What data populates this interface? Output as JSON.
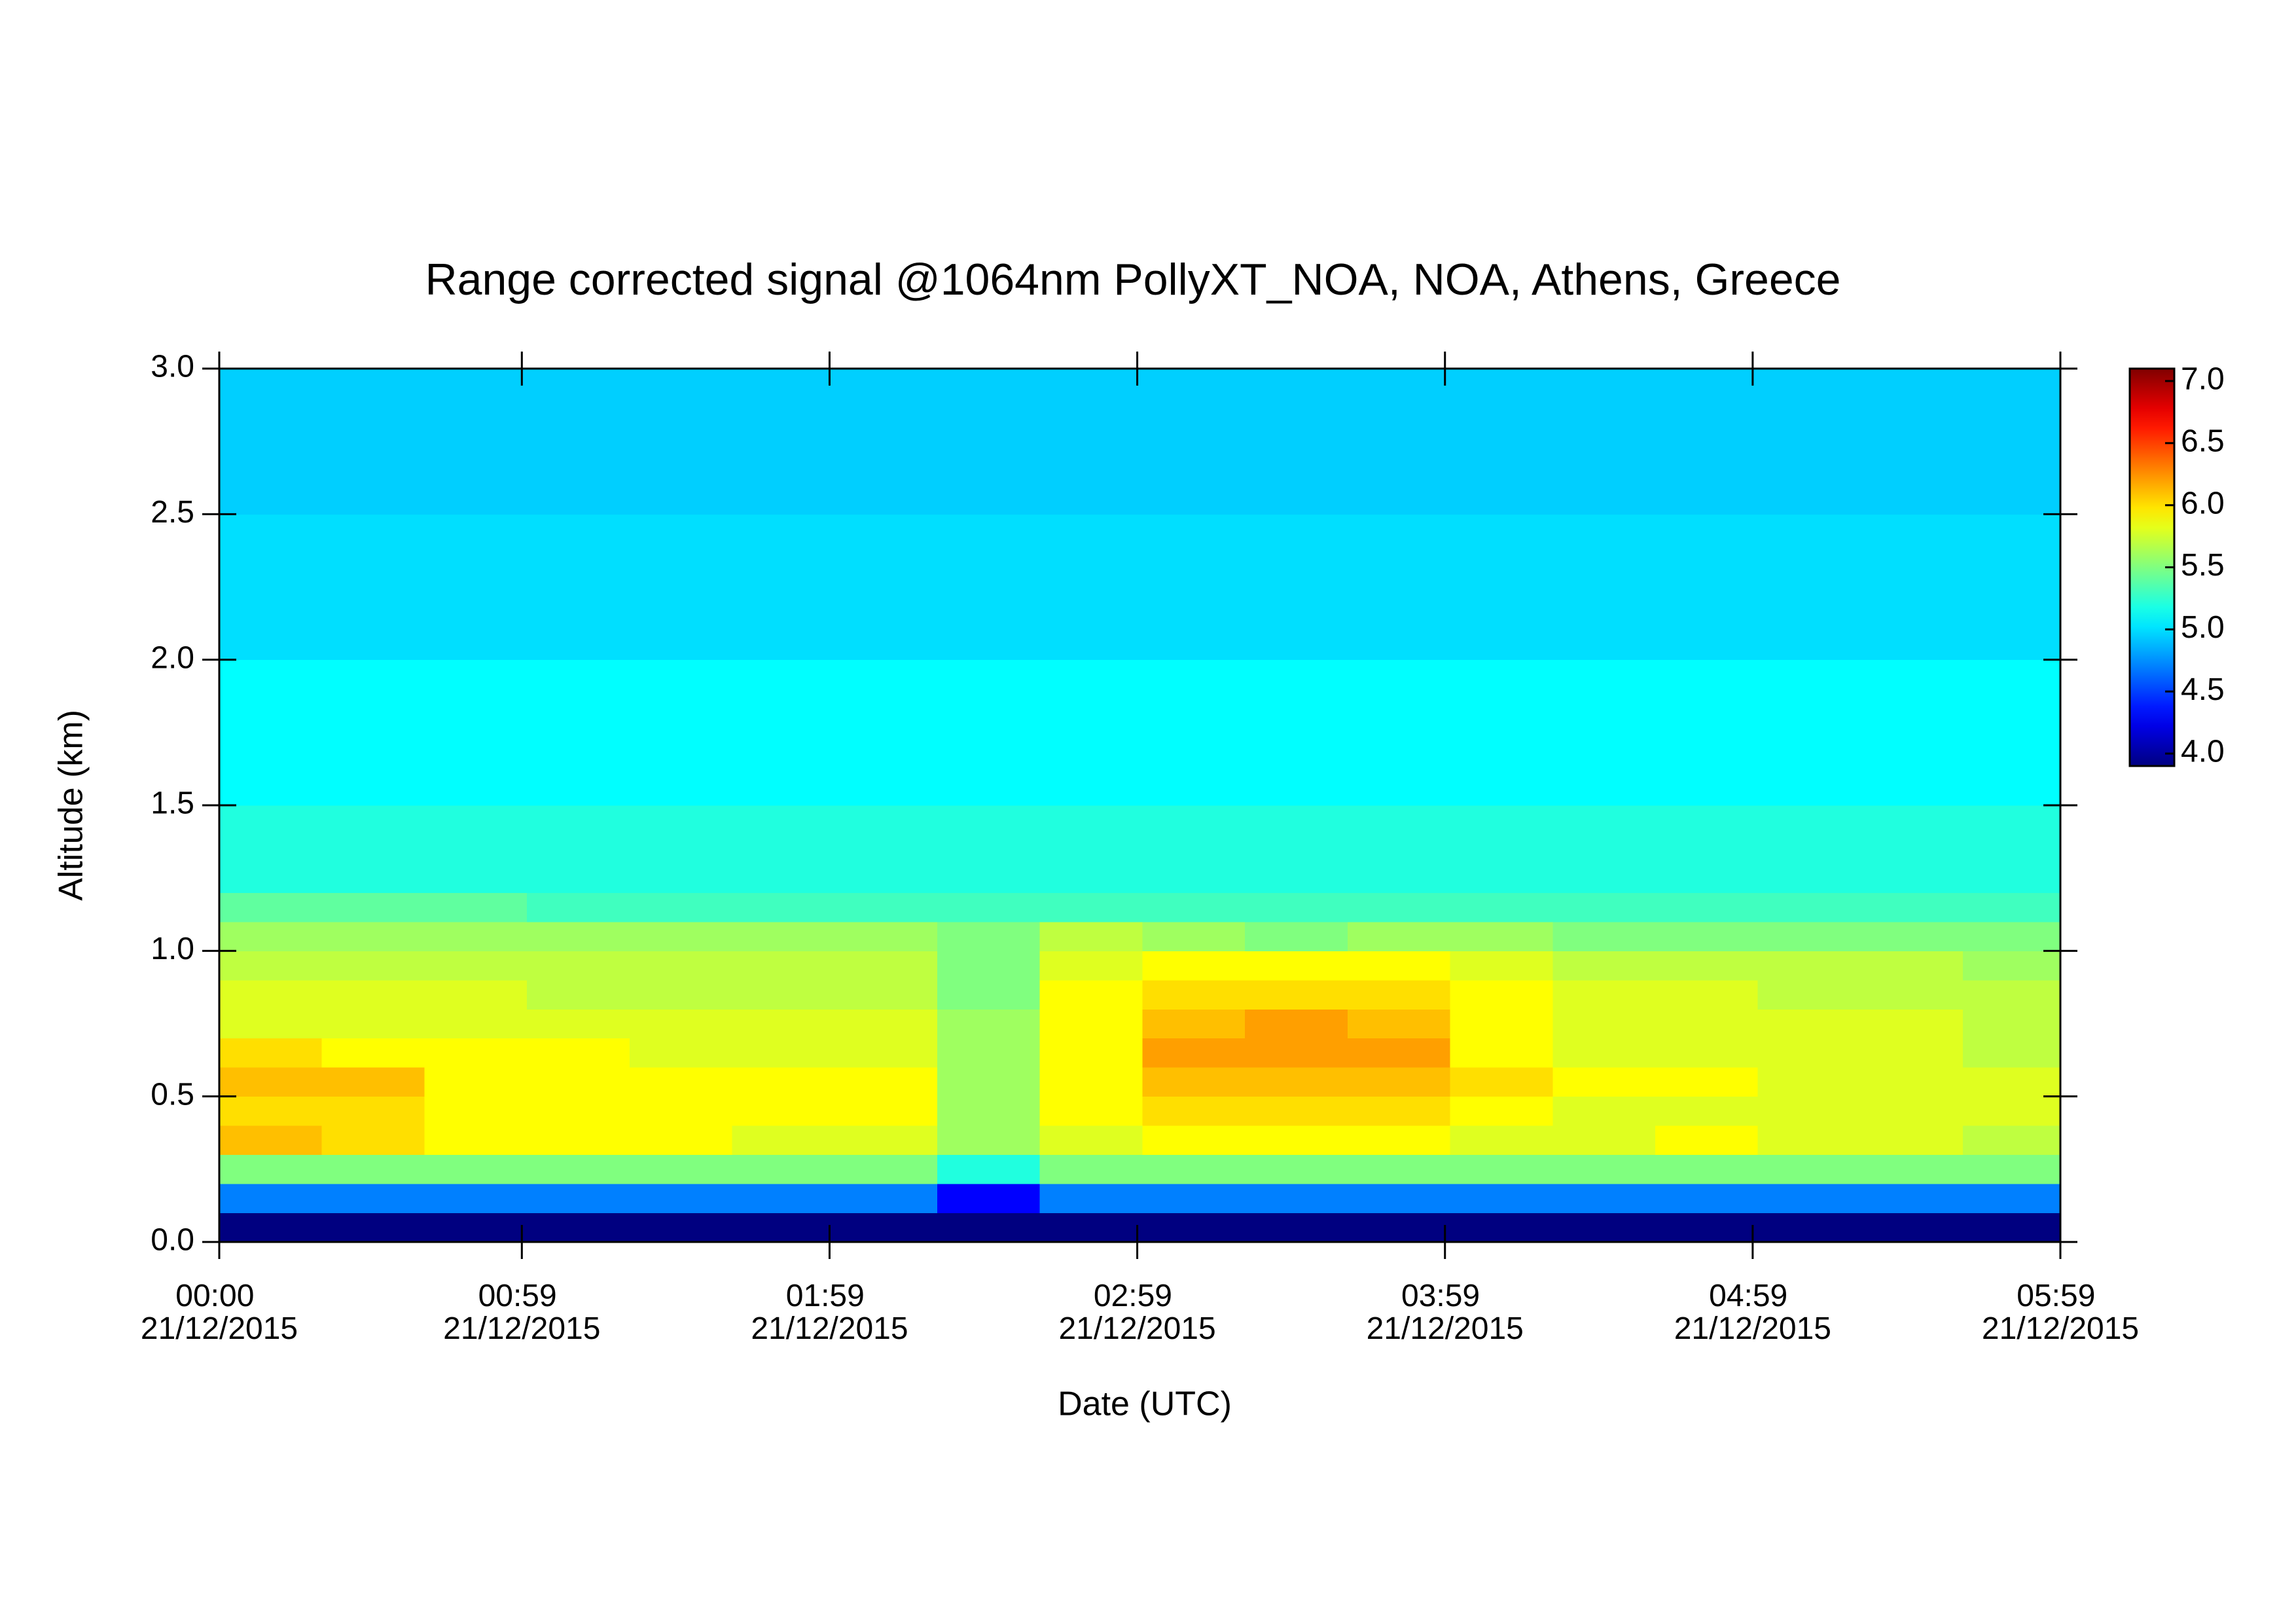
{
  "chart_data": {
    "type": "heatmap",
    "title": "Range corrected signal @1064nm  PollyXT_NOA, NOA, Athens, Greece",
    "xlabel": "Date (UTC)",
    "ylabel": "Altitude (km)",
    "xlim": [
      0,
      359
    ],
    "ylim": [
      0,
      3.0
    ],
    "xticks": [
      {
        "value": 0,
        "label": "00:00 21/12/2015"
      },
      {
        "value": 59,
        "label": "00:59 21/12/2015"
      },
      {
        "value": 119,
        "label": "01:59 21/12/2015"
      },
      {
        "value": 179,
        "label": "02:59 21/12/2015"
      },
      {
        "value": 239,
        "label": "03:59 21/12/2015"
      },
      {
        "value": 299,
        "label": "04:59 21/12/2015"
      },
      {
        "value": 359,
        "label": "05:59 21/12/2015"
      }
    ],
    "yticks": [
      {
        "value": 0,
        "label": "0.0"
      },
      {
        "value": 0.5,
        "label": "0.5"
      },
      {
        "value": 1,
        "label": "1.0"
      },
      {
        "value": 1.5,
        "label": "1.5"
      },
      {
        "value": 2,
        "label": "2.0"
      },
      {
        "value": 2.5,
        "label": "2.5"
      },
      {
        "value": 3,
        "label": "3.0"
      }
    ],
    "xbins": [
      0,
      20,
      40,
      60,
      80,
      100,
      120,
      140,
      160,
      180,
      200,
      220,
      240,
      260,
      280,
      300,
      320,
      340,
      359
    ],
    "ybins": [
      0,
      0.1,
      0.2,
      0.3,
      0.4,
      0.5,
      0.6,
      0.7,
      0.8,
      0.9,
      1.0,
      1.1,
      1.2,
      1.5,
      2.0,
      2.5,
      3.0
    ],
    "z": [
      [
        3.9,
        3.9,
        3.9,
        3.9,
        3.9,
        3.9,
        3.9,
        3.9,
        3.9,
        3.9,
        3.9,
        3.9,
        3.9,
        3.9,
        3.9,
        3.9,
        3.9,
        3.9
      ],
      [
        4.7,
        4.7,
        4.7,
        4.7,
        4.7,
        4.7,
        4.7,
        4.3,
        4.7,
        4.7,
        4.7,
        4.7,
        4.7,
        4.7,
        4.7,
        4.7,
        4.7,
        4.7
      ],
      [
        5.5,
        5.5,
        5.5,
        5.5,
        5.5,
        5.5,
        5.5,
        5.2,
        5.5,
        5.5,
        5.5,
        5.5,
        5.5,
        5.5,
        5.5,
        5.5,
        5.5,
        5.5
      ],
      [
        6.1,
        6.0,
        5.9,
        5.9,
        5.9,
        5.8,
        5.8,
        5.6,
        5.8,
        5.9,
        5.9,
        5.9,
        5.8,
        5.8,
        5.9,
        5.8,
        5.8,
        5.7
      ],
      [
        6.0,
        6.0,
        5.9,
        5.9,
        5.9,
        5.9,
        5.9,
        5.6,
        5.9,
        6.0,
        6.0,
        6.0,
        5.9,
        5.8,
        5.8,
        5.8,
        5.8,
        5.8
      ],
      [
        6.1,
        6.1,
        5.9,
        5.9,
        5.9,
        5.9,
        5.9,
        5.6,
        5.9,
        6.1,
        6.1,
        6.1,
        6.0,
        5.9,
        5.9,
        5.8,
        5.8,
        5.8
      ],
      [
        6.0,
        5.9,
        5.9,
        5.9,
        5.8,
        5.8,
        5.8,
        5.6,
        5.9,
        6.2,
        6.2,
        6.2,
        5.9,
        5.8,
        5.8,
        5.8,
        5.8,
        5.7
      ],
      [
        5.8,
        5.8,
        5.8,
        5.8,
        5.8,
        5.8,
        5.8,
        5.6,
        5.9,
        6.1,
        6.2,
        6.1,
        5.9,
        5.8,
        5.8,
        5.8,
        5.8,
        5.7
      ],
      [
        5.8,
        5.8,
        5.8,
        5.7,
        5.7,
        5.7,
        5.7,
        5.5,
        5.9,
        6.0,
        6.0,
        6.0,
        5.9,
        5.8,
        5.8,
        5.7,
        5.7,
        5.7
      ],
      [
        5.7,
        5.7,
        5.7,
        5.7,
        5.7,
        5.7,
        5.7,
        5.5,
        5.8,
        5.9,
        5.9,
        5.9,
        5.8,
        5.7,
        5.7,
        5.7,
        5.7,
        5.6
      ],
      [
        5.6,
        5.6,
        5.6,
        5.6,
        5.6,
        5.6,
        5.6,
        5.5,
        5.7,
        5.6,
        5.5,
        5.6,
        5.6,
        5.5,
        5.5,
        5.5,
        5.5,
        5.5
      ],
      [
        5.4,
        5.4,
        5.4,
        5.3,
        5.3,
        5.3,
        5.3,
        5.3,
        5.3,
        5.3,
        5.3,
        5.3,
        5.3,
        5.3,
        5.3,
        5.3,
        5.3,
        5.3
      ],
      [
        5.2,
        5.2,
        5.2,
        5.2,
        5.2,
        5.2,
        5.2,
        5.2,
        5.2,
        5.2,
        5.2,
        5.2,
        5.2,
        5.2,
        5.2,
        5.2,
        5.2,
        5.2
      ],
      [
        5.1,
        5.1,
        5.1,
        5.1,
        5.1,
        5.1,
        5.1,
        5.1,
        5.1,
        5.1,
        5.1,
        5.1,
        5.1,
        5.1,
        5.1,
        5.1,
        5.1,
        5.1
      ],
      [
        5.0,
        5.0,
        5.0,
        5.0,
        5.0,
        5.0,
        5.0,
        5.0,
        5.0,
        5.0,
        5.0,
        5.0,
        5.0,
        5.0,
        5.0,
        5.0,
        5.0,
        5.0
      ],
      [
        4.95,
        4.95,
        4.95,
        4.95,
        4.95,
        4.95,
        4.95,
        4.95,
        4.95,
        4.95,
        4.95,
        4.95,
        4.95,
        4.95,
        4.95,
        4.95,
        4.95,
        4.95
      ]
    ],
    "colormap": "jet",
    "clim": [
      3.9,
      7.1
    ],
    "cticks": [
      {
        "value": 4,
        "label": "4.0"
      },
      {
        "value": 4.5,
        "label": "4.5"
      },
      {
        "value": 5,
        "label": "5.0"
      },
      {
        "value": 5.5,
        "label": "5.5"
      },
      {
        "value": 6,
        "label": "6.0"
      },
      {
        "value": 6.5,
        "label": "6.5"
      },
      {
        "value": 7,
        "label": "7.0"
      }
    ]
  }
}
